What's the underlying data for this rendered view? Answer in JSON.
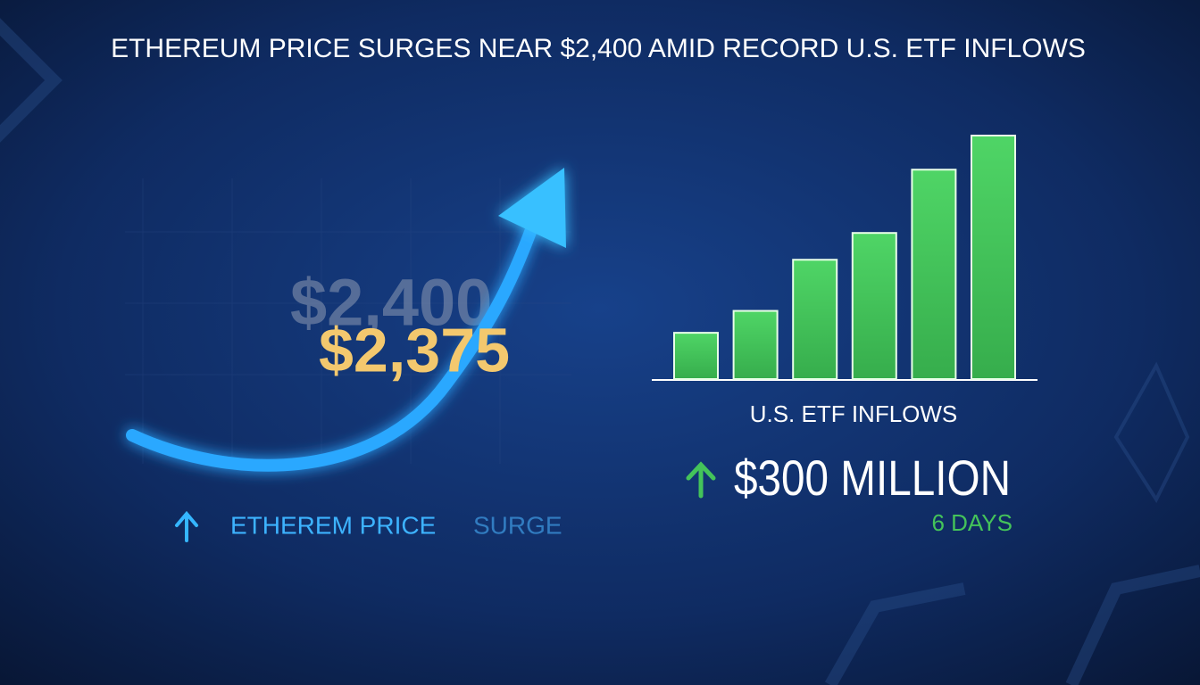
{
  "title": "ETHEREUM PRICE SURGES NEAR $2,400 AMID RECORD U.S. ETF INFLOWS",
  "price": {
    "target": "$2,400",
    "current": "$2,375",
    "caption": [
      "ETHEREM PRICE",
      "SURGE"
    ]
  },
  "chart_data": {
    "type": "bar",
    "label": "U.S. ETF INFLOWS",
    "total": "$300 MILLION",
    "period": "6 DAYS",
    "values": [
      19,
      28,
      49,
      60,
      86,
      100
    ],
    "color": "#44c35a"
  }
}
